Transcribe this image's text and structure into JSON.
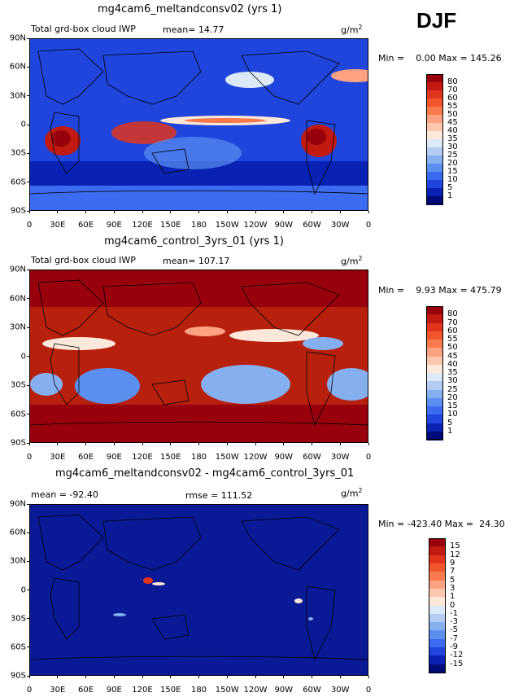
{
  "season": "DJF",
  "panels": [
    {
      "title": "mg4cam6_meltandconsv02 (yrs 1)",
      "left_label": "Total grd-box cloud IWP",
      "center_label": "mean=  14.77",
      "units_base": "g/m",
      "units_exp": "2",
      "stats": "Min =    0.00 Max = 145.26",
      "colorbar_labels": [
        "80",
        "70",
        "60",
        "55",
        "50",
        "45",
        "40",
        "35",
        "30",
        "25",
        "20",
        "15",
        "10",
        "5",
        "1"
      ],
      "colorbar_colors": [
        "#99000d",
        "#c11a10",
        "#e0351c",
        "#f0552e",
        "#f97a4d",
        "#fca283",
        "#fdc7ad",
        "#fde8da",
        "#dce9f7",
        "#b2cdf1",
        "#86aff0",
        "#5a8ff0",
        "#3a6bf0",
        "#1f45dc",
        "#0a22b4",
        "#000a78"
      ],
      "yticks": [
        "90N",
        "60N",
        "30N",
        "0",
        "30S",
        "60S",
        "90S"
      ]
    },
    {
      "title": "mg4cam6_control_3yrs_01 (yrs 1)",
      "left_label": "Total grd-box cloud IWP",
      "center_label": "mean= 107.17",
      "units_base": "g/m",
      "units_exp": "2",
      "stats": "Min =    9.93 Max = 475.79",
      "colorbar_labels": [
        "80",
        "70",
        "60",
        "55",
        "50",
        "45",
        "40",
        "35",
        "30",
        "25",
        "20",
        "15",
        "10",
        "5",
        "1"
      ],
      "colorbar_colors": [
        "#99000d",
        "#c11a10",
        "#e0351c",
        "#f0552e",
        "#f97a4d",
        "#fca283",
        "#fdc7ad",
        "#fde8da",
        "#dce9f7",
        "#b2cdf1",
        "#86aff0",
        "#5a8ff0",
        "#3a6bf0",
        "#1f45dc",
        "#0a22b4",
        "#000a78"
      ],
      "yticks": [
        "90N",
        "60N",
        "30N",
        "0",
        "30S",
        "60S",
        "90S"
      ]
    },
    {
      "title": "mg4cam6_meltandconsv02 - mg4cam6_control_3yrs_01",
      "left_label": "mean = -92.40",
      "center_label": "rmse = 111.52",
      "units_base": "g/m",
      "units_exp": "2",
      "stats": "Min = -423.40 Max =  24.30",
      "colorbar_labels": [
        "15",
        "12",
        "9",
        "7",
        "5",
        "3",
        "1",
        "0",
        "-1",
        "-3",
        "-5",
        "-7",
        "-9",
        "-12",
        "-15"
      ],
      "colorbar_colors": [
        "#99000d",
        "#c11a10",
        "#e0351c",
        "#f0552e",
        "#f97a4d",
        "#fca283",
        "#fdc7ad",
        "#fde8da",
        "#dce9f7",
        "#b2cdf1",
        "#86aff0",
        "#5a8ff0",
        "#3a6bf0",
        "#1f45dc",
        "#0a22b4",
        "#000a78"
      ],
      "yticks": [
        "90N",
        "60N",
        "30N",
        "0",
        "30S",
        "60S",
        "90S"
      ]
    }
  ],
  "xticks": [
    "0",
    "30E",
    "60E",
    "90E",
    "120E",
    "150E",
    "180",
    "150W",
    "120W",
    "90W",
    "60W",
    "30W",
    "0"
  ],
  "map_base_colors": [
    "#1f45dc",
    "#b8200e",
    "#0a1a96"
  ]
}
